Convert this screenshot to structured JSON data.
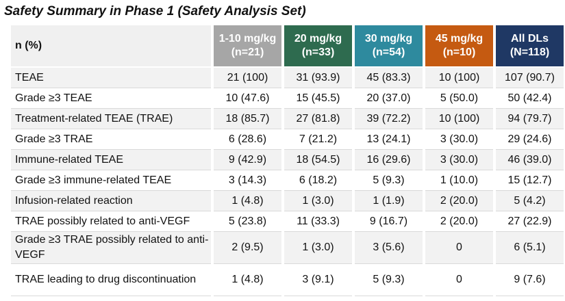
{
  "title": "Safety Summary in Phase 1 (Safety Analysis Set)",
  "colors": {
    "grey": "#a6a6a6",
    "green": "#2e6b4f",
    "teal": "#2e8a9e",
    "orange": "#c55a11",
    "navy": "#1f3864"
  },
  "header": {
    "row_label": "n (%)",
    "columns": [
      {
        "line1": "1-10 mg/kg",
        "line2": "(n=21)",
        "color": "#a6a6a6"
      },
      {
        "line1": "20 mg/kg",
        "line2": "(n=33)",
        "color": "#2e6b4f"
      },
      {
        "line1": "30 mg/kg",
        "line2": "(n=54)",
        "color": "#2e8a9e"
      },
      {
        "line1": "45 mg/kg",
        "line2": "(n=10)",
        "color": "#c55a11"
      },
      {
        "line1": "All DLs",
        "line2": "(N=118)",
        "color": "#1f3864"
      }
    ]
  },
  "rows": [
    {
      "label": "TEAE",
      "values": [
        "21 (100)",
        "31 (93.9)",
        "45 (83.3)",
        "10 (100)",
        "107 (90.7)"
      ]
    },
    {
      "label": "Grade ≥3 TEAE",
      "values": [
        "10 (47.6)",
        "15 (45.5)",
        "20 (37.0)",
        "5 (50.0)",
        "50 (42.4)"
      ]
    },
    {
      "label": "Treatment-related TEAE (TRAE)",
      "values": [
        "18 (85.7)",
        "27 (81.8)",
        "39 (72.2)",
        "10 (100)",
        "94 (79.7)"
      ]
    },
    {
      "label": "Grade ≥3 TRAE",
      "values": [
        "6 (28.6)",
        "7 (21.2)",
        "13 (24.1)",
        "3 (30.0)",
        "29 (24.6)"
      ]
    },
    {
      "label": "Immune-related TEAE",
      "values": [
        "9 (42.9)",
        "18 (54.5)",
        "16 (29.6)",
        "3 (30.0)",
        "46 (39.0)"
      ]
    },
    {
      "label": "Grade ≥3 immune-related TEAE",
      "values": [
        "3 (14.3)",
        "6 (18.2)",
        "5 (9.3)",
        "1 (10.0)",
        "15 (12.7)"
      ]
    },
    {
      "label": "Infusion-related reaction",
      "values": [
        "1 (4.8)",
        "1 (3.0)",
        "1 (1.9)",
        "2 (20.0)",
        "5 (4.2)"
      ]
    },
    {
      "label": "TRAE possibly related to anti-VEGF",
      "values": [
        "5 (23.8)",
        "11 (33.3)",
        "9 (16.7)",
        "2 (20.0)",
        "27 (22.9)"
      ]
    },
    {
      "label": "Grade ≥3 TRAE possibly related to anti-VEGF",
      "values": [
        "2 (9.5)",
        "1 (3.0)",
        "3 (5.6)",
        "0",
        "6 (5.1)"
      ]
    },
    {
      "label": "TRAE leading to drug discontinuation",
      "values": [
        "1 (4.8)",
        "3 (9.1)",
        "5 (9.3)",
        "0",
        "9 (7.6)"
      ]
    }
  ]
}
